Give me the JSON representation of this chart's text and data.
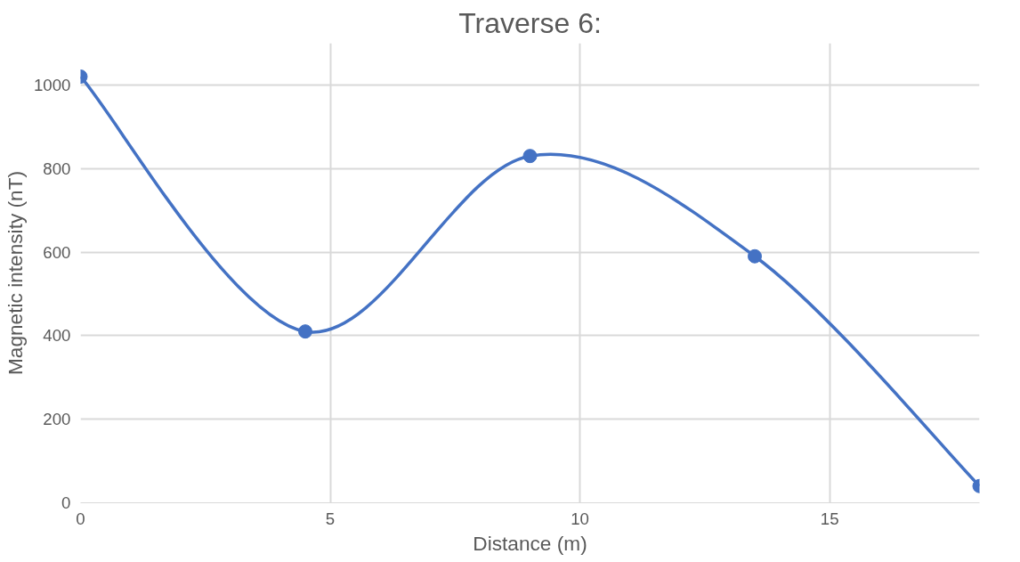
{
  "chart_data": {
    "type": "line",
    "title": "Traverse 6:",
    "xlabel": "Distance (m)",
    "ylabel": "Magnetic intensity (nT)",
    "x": [
      0,
      4.5,
      9,
      13.5,
      18
    ],
    "series": [
      {
        "color": "#4472c4",
        "values": [
          1020,
          410,
          830,
          590,
          40
        ]
      }
    ],
    "xlim": [
      0,
      18
    ],
    "xticks": [
      0,
      5,
      10,
      15
    ],
    "ylim": [
      0,
      1100
    ],
    "yticks": [
      0,
      200,
      400,
      600,
      800,
      1000
    ],
    "grid": true,
    "marker": "circle",
    "line_style": "solid"
  }
}
